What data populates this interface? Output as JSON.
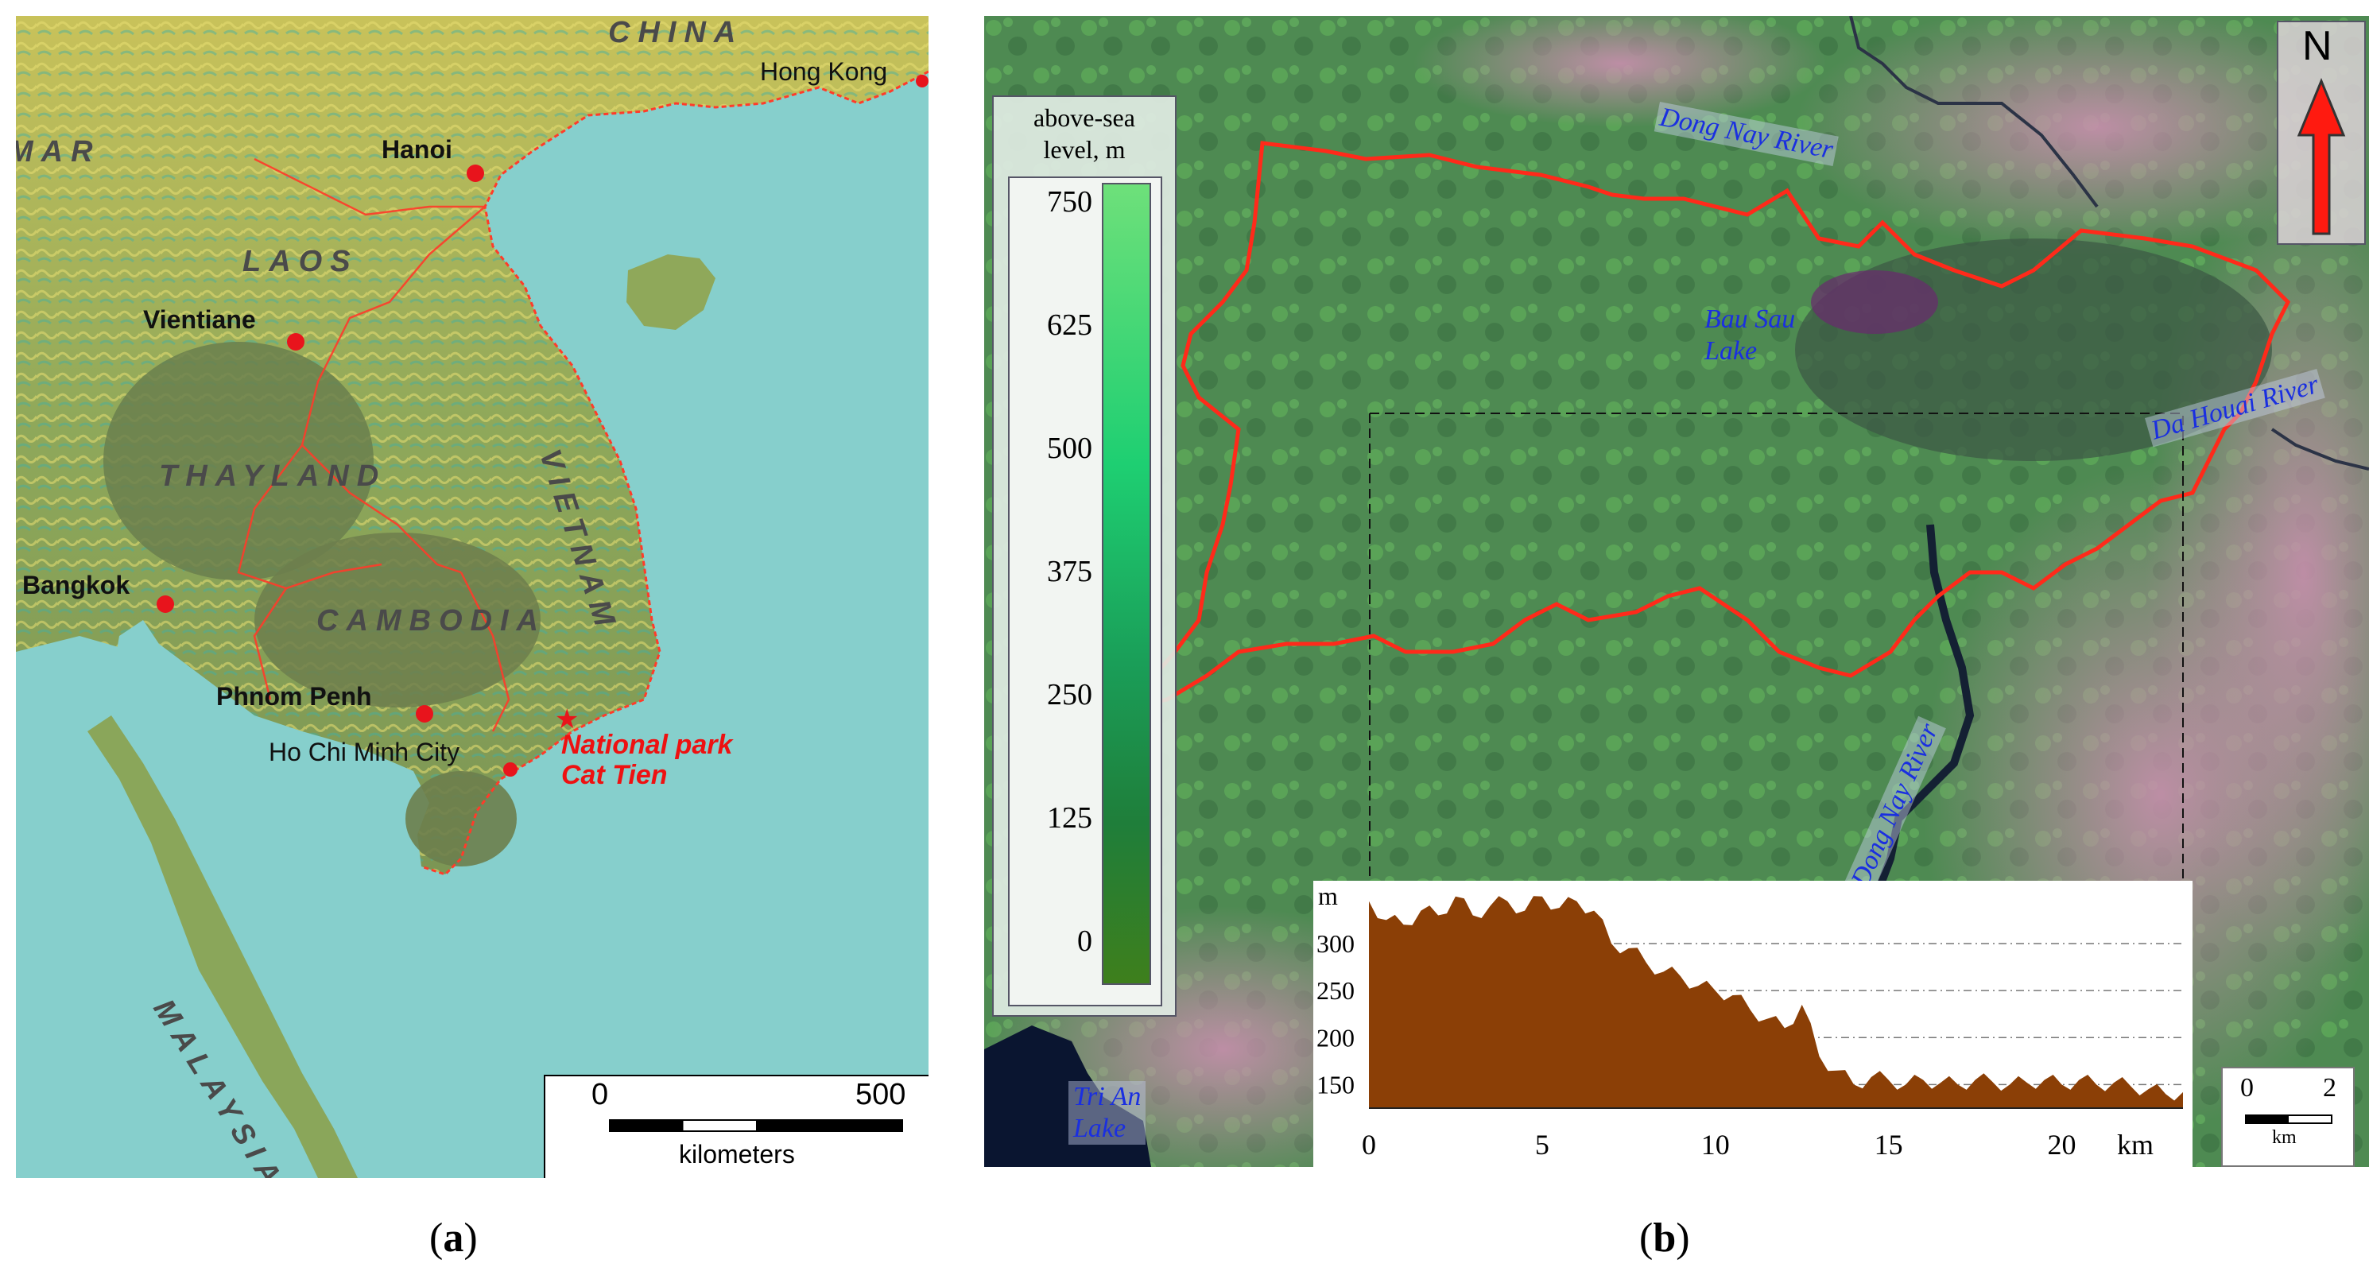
{
  "panel_a": {
    "countries": [
      "CHINA",
      "MAR",
      "LAOS",
      "THAYLAND",
      "VIETNAM",
      "CAMBODIA",
      "MALAYSIA"
    ],
    "cities": {
      "hong_kong": "Hong Kong",
      "hanoi": "Hanoi",
      "vientiane": "Vientiane",
      "bangkok": "Bangkok",
      "phnom_penh": "Phnom Penh",
      "ho_chi_minh": "Ho Chi Minh City"
    },
    "park_line1": "National park",
    "park_line2": "Cat Tien",
    "scale": {
      "min": "0",
      "max": "500",
      "unit": "kilometers"
    },
    "caption": {
      "open": "(",
      "letter": "a",
      "close": ")"
    },
    "colors": {
      "sea": "#86cfcc",
      "land_low": "#6f8f52",
      "land_high": "#d8cf64",
      "border": "#ff3b2a",
      "city_dot": "#e8141c"
    }
  },
  "panel_b": {
    "legend": {
      "title_line1": "above-sea",
      "title_line2": "level, m",
      "ticks": [
        "750",
        "625",
        "500",
        "375",
        "250",
        "125",
        "0"
      ]
    },
    "rivers": {
      "dong_nay_top": "Dong Nay River",
      "da_houai": "Da Houai River",
      "dong_nay_bottom": "Dong Nay River"
    },
    "lakes": {
      "bau_sau_1": "Bau Sau",
      "bau_sau_2": "Lake",
      "tri_an_1": "Tri An",
      "tri_an_2": "Lake"
    },
    "north": "N",
    "scale": {
      "min": "0",
      "max": "2",
      "unit": "km"
    },
    "profile": {
      "y_unit": "m",
      "y_ticks": [
        "300",
        "250",
        "200",
        "150"
      ],
      "x_ticks": [
        "0",
        "5",
        "10",
        "15",
        "20"
      ],
      "x_unit": "km"
    },
    "caption": {
      "open": "(",
      "letter": "b",
      "close": ")"
    },
    "colors": {
      "boundary": "#ff2a1a",
      "profile_fill": "#8b3f06",
      "arrow": "#ff1a10"
    }
  },
  "chart_data": {
    "type": "area",
    "xlabel": "km",
    "ylabel": "m",
    "xlim": [
      0,
      23.5
    ],
    "ylim": [
      125,
      360
    ],
    "x": [
      0,
      0.5,
      1,
      1.5,
      2,
      2.5,
      3,
      3.5,
      4,
      4.5,
      5,
      5.5,
      6,
      6.5,
      7,
      7.5,
      8,
      8.5,
      9,
      9.5,
      10,
      10.5,
      11,
      11.5,
      12,
      12.5,
      13,
      13.5,
      14,
      14.5,
      15,
      15.5,
      16,
      16.5,
      17,
      17.5,
      18,
      18.5,
      19,
      19.5,
      20,
      20.5,
      21,
      21.5,
      22,
      22.5,
      23,
      23.5
    ],
    "y": [
      345,
      325,
      320,
      335,
      330,
      350,
      330,
      340,
      345,
      335,
      350,
      338,
      345,
      335,
      300,
      295,
      280,
      270,
      265,
      255,
      250,
      245,
      230,
      220,
      210,
      235,
      180,
      165,
      150,
      158,
      155,
      150,
      155,
      152,
      150,
      155,
      153,
      150,
      152,
      155,
      150,
      155,
      150,
      152,
      148,
      145,
      140,
      142
    ]
  }
}
